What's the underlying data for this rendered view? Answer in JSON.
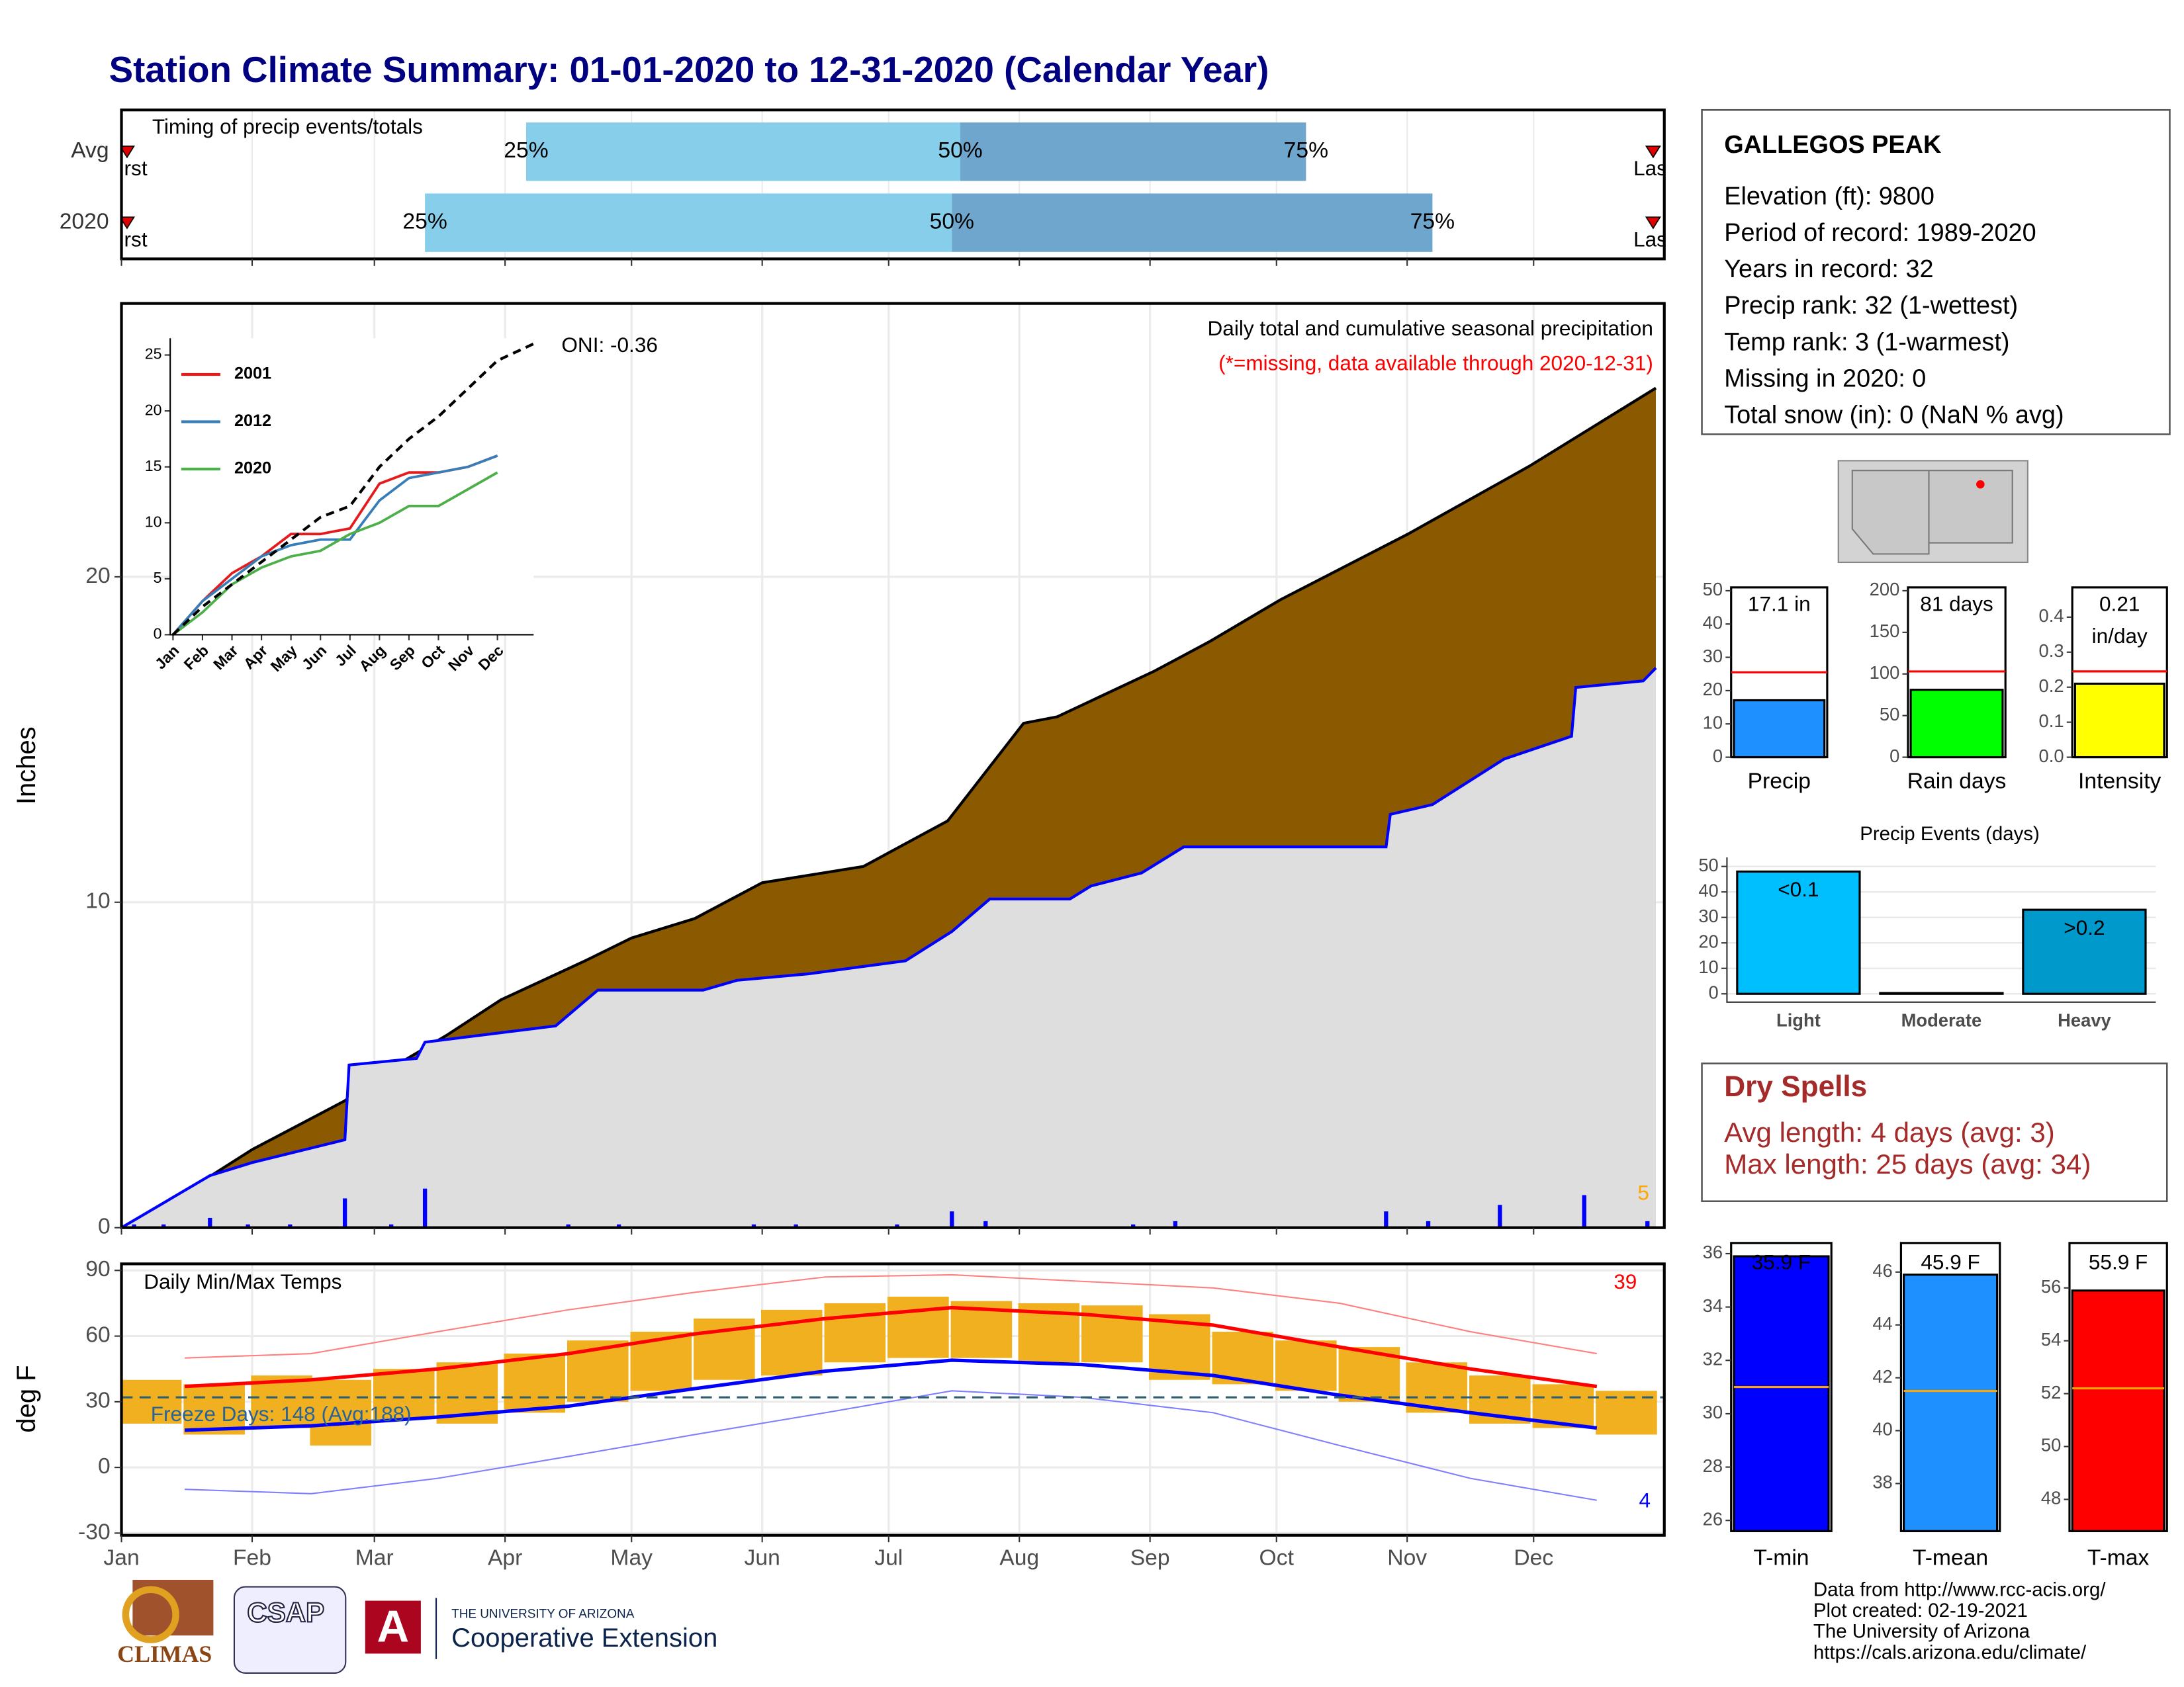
{
  "title": "Station Climate Summary: 01-01-2020 to 12-31-2020 (Calendar Year)",
  "chart_data": [
    {
      "type": "timing",
      "title": "Timing of precip events/totals",
      "xlim": [
        0,
        366
      ],
      "first_label": "First",
      "last_label": "Last",
      "colors": [
        "#87ceeb",
        "#6fa6cd"
      ],
      "marker_color": "#e00000",
      "rows": [
        {
          "name": "Avg",
          "values": [
            96,
            199,
            281
          ],
          "labels": [
            "25%",
            "50%",
            "75%"
          ]
        },
        {
          "name": "2020",
          "values": [
            72,
            197,
            311
          ],
          "labels": [
            "25%",
            "50%",
            "75%"
          ]
        }
      ]
    },
    {
      "type": "area",
      "title": "Daily total and cumulative seasonal precipitation",
      "subtitle": "(*=missing, data available through 2020-12-31)",
      "annotation": "ONI: -0.36",
      "count_label": "5",
      "ylabel": "Inches",
      "xlim": [
        0,
        366
      ],
      "xticks": [
        {
          "value": 0,
          "label": "Jan"
        },
        {
          "value": 31,
          "label": "Feb"
        },
        {
          "value": 60,
          "label": "Mar"
        },
        {
          "value": 91,
          "label": "Apr"
        },
        {
          "value": 121,
          "label": "May"
        },
        {
          "value": 152,
          "label": "Jun"
        },
        {
          "value": 182,
          "label": "Jul"
        },
        {
          "value": 213,
          "label": "Aug"
        },
        {
          "value": 244,
          "label": "Sep"
        },
        {
          "value": 274,
          "label": "Oct"
        },
        {
          "value": 305,
          "label": "Nov"
        },
        {
          "value": 335,
          "label": "Dec"
        }
      ],
      "ylim": [
        0,
        28.4
      ],
      "yticks": [
        0,
        10,
        20
      ],
      "grid": true,
      "avg": {
        "color": "#8b5a00",
        "line": "#000000",
        "x": [
          0,
          14,
          31,
          53,
          60,
          77,
          90,
          110,
          121,
          136,
          152,
          176,
          196,
          214,
          222,
          245,
          258,
          275,
          305,
          334,
          364
        ],
        "values": [
          0,
          1.0,
          2.4,
          3.9,
          4.6,
          5.9,
          7.0,
          8.2,
          8.9,
          9.5,
          10.6,
          11.1,
          12.5,
          15.5,
          15.7,
          17.1,
          18.0,
          19.3,
          21.3,
          23.4,
          25.8
        ]
      },
      "current": {
        "color": "#dedede",
        "line": "#0000ff",
        "x": [
          0,
          21,
          31,
          53,
          54,
          70,
          72,
          103,
          113,
          138,
          146,
          163,
          186,
          197,
          206,
          225,
          230,
          242,
          252,
          300,
          301,
          311,
          328,
          344,
          345,
          361,
          364
        ],
        "values": [
          0,
          1.6,
          2.0,
          2.7,
          5.0,
          5.2,
          5.7,
          6.2,
          7.3,
          7.3,
          7.6,
          7.8,
          8.2,
          9.1,
          10.1,
          10.1,
          10.5,
          10.9,
          11.7,
          11.7,
          12.7,
          13.0,
          14.4,
          15.1,
          16.6,
          16.8,
          17.2
        ]
      },
      "daily": {
        "color": "#0000ff",
        "x": [
          3,
          10,
          21,
          30,
          40,
          53,
          64,
          72,
          106,
          118,
          150,
          160,
          184,
          197,
          205,
          240,
          250,
          300,
          310,
          327,
          347,
          362
        ],
        "values": [
          0.1,
          0.1,
          0.3,
          0.1,
          0.1,
          0.9,
          0.1,
          1.2,
          0.1,
          0.1,
          0.1,
          0.1,
          0.1,
          0.5,
          0.2,
          0.1,
          0.2,
          0.5,
          0.2,
          0.7,
          1.0,
          0.2
        ]
      }
    },
    {
      "type": "line",
      "xlim": [
        0,
        11
      ],
      "categories": [
        "Jan",
        "Feb",
        "Mar",
        "Apr",
        "May",
        "Jun",
        "Jul",
        "Aug",
        "Sep",
        "Oct",
        "Nov",
        "Dec"
      ],
      "ylim": [
        0,
        26
      ],
      "yticks": [
        0,
        5,
        10,
        15,
        20,
        25
      ],
      "series": [
        {
          "name": "2001",
          "color": "#e41a1c",
          "values": [
            0,
            3,
            5.5,
            7,
            9,
            9,
            9.5,
            13.5,
            14.5,
            14.5,
            15,
            16
          ]
        },
        {
          "name": "2012",
          "color": "#377eb8",
          "values": [
            0,
            3,
            5,
            7,
            8,
            8.5,
            8.5,
            12,
            14,
            14.5,
            15,
            16
          ]
        },
        {
          "name": "2020",
          "color": "#4daf4a",
          "values": [
            0,
            2,
            4.5,
            6,
            7,
            7.5,
            9,
            10,
            11.5,
            11.5,
            13,
            14.5
          ]
        },
        {
          "color": "#000000",
          "dash": true,
          "values": [
            0,
            2.5,
            4.5,
            6.5,
            8.5,
            10.5,
            11.5,
            15,
            17.5,
            19.5,
            22,
            24.5
          ]
        }
      ]
    },
    {
      "type": "temperature",
      "title": "Daily Min/Max Temps",
      "annotation": "Freeze Days: 148 (Avg:188)",
      "max_count": "39",
      "min_count": "4",
      "ylabel": "deg F",
      "ylim": [
        -31,
        93
      ],
      "yticks": [
        -30,
        0,
        30,
        60,
        90
      ],
      "freeze": 32,
      "line_x": [
        15,
        45,
        75,
        106,
        136,
        167,
        197,
        228,
        259,
        289,
        320,
        350
      ],
      "avg_max": {
        "color": "#ff0000",
        "values": [
          37,
          40,
          45,
          52,
          61,
          68,
          73,
          70,
          65,
          55,
          45,
          37
        ]
      },
      "avg_min": {
        "color": "#0000ff",
        "values": [
          17,
          19,
          23,
          28,
          36,
          44,
          49,
          47,
          42,
          33,
          25,
          18
        ]
      },
      "rec_max": {
        "color": "#ff8080",
        "values": [
          50,
          52,
          62,
          72,
          80,
          87,
          88,
          85,
          82,
          75,
          62,
          52
        ]
      },
      "rec_min": {
        "color": "#8080ff",
        "values": [
          -10,
          -12,
          -5,
          5,
          15,
          25,
          35,
          32,
          25,
          10,
          -5,
          -15
        ]
      },
      "bars": {
        "color": "#f0b020",
        "x": [
          7,
          22,
          38,
          52,
          67,
          82,
          98,
          113,
          128,
          143,
          159,
          174,
          189,
          204,
          220,
          235,
          251,
          266,
          281,
          296,
          312,
          327,
          342,
          357
        ],
        "low": [
          20,
          15,
          18,
          10,
          22,
          20,
          25,
          30,
          35,
          40,
          42,
          48,
          50,
          50,
          48,
          48,
          40,
          38,
          35,
          30,
          25,
          20,
          18,
          15
        ],
        "high": [
          40,
          38,
          42,
          40,
          45,
          48,
          52,
          58,
          62,
          68,
          72,
          75,
          78,
          76,
          75,
          74,
          70,
          62,
          58,
          55,
          48,
          42,
          38,
          35
        ]
      }
    },
    {
      "type": "info",
      "title": "GALLEGOS PEAK",
      "lines": [
        "Elevation (ft): 9800",
        "Period of record: 1989-2020",
        "Years in record: 32",
        "Precip rank: 32 (1-wettest)",
        "Temp rank: 3 (1-warmest)",
        "Missing in 2020: 0",
        "Total snow (in): 0 (NaN % avg)"
      ]
    },
    {
      "type": "bar",
      "category": "Precip",
      "value": 17.1,
      "value_label": [
        "17.1 in"
      ],
      "avg": 25.5,
      "color": "#1e90ff",
      "ylim": [
        0,
        51
      ],
      "yticks": [
        0,
        10,
        20,
        30,
        40,
        50
      ]
    },
    {
      "type": "bar",
      "category": "Rain days",
      "value": 81,
      "value_label": [
        "81 days"
      ],
      "avg": 103,
      "color": "#00ff00",
      "ylim": [
        0,
        204
      ],
      "yticks": [
        0,
        50,
        100,
        150,
        200
      ]
    },
    {
      "type": "bar",
      "category": "Intensity",
      "value": 0.21,
      "value_label": [
        "0.21",
        "in/day"
      ],
      "avg": 0.245,
      "color": "#ffff00",
      "ylim": [
        0,
        0.485
      ],
      "yticks": [
        {
          "value": 0,
          "label": "0.0"
        },
        0.1,
        0.2,
        0.3,
        0.4
      ]
    },
    {
      "type": "events",
      "title": "Precip Events (days)",
      "categories": [
        "Light",
        "Moderate",
        "Heavy"
      ],
      "values": [
        48,
        0.3,
        33
      ],
      "value_labels": [
        "<0.1",
        null,
        ">0.2"
      ],
      "colors": [
        "#00bfff",
        "#00bfff",
        "#0099cc"
      ],
      "ylim": [
        0,
        53
      ],
      "yticks": [
        0,
        10,
        20,
        30,
        40,
        50
      ]
    },
    {
      "type": "dry",
      "title": "Dry Spells",
      "lines": [
        "Avg length: 4 days (avg: 3)",
        "Max length: 25 days (avg: 34)"
      ]
    },
    {
      "type": "tbar",
      "category": "T-min",
      "value": 35.9,
      "value_label": "35.9 F",
      "avg": 31.0,
      "color": "#0000ff",
      "ylim": [
        25.6,
        36.4
      ],
      "yticks": [
        26,
        28,
        30,
        32,
        34,
        36
      ]
    },
    {
      "type": "tbar",
      "category": "T-mean",
      "value": 45.9,
      "value_label": "45.9 F",
      "avg": 41.5,
      "color": "#1e90ff",
      "ylim": [
        36.2,
        47.1
      ],
      "yticks": [
        38,
        40,
        42,
        44,
        46
      ]
    },
    {
      "type": "tbar",
      "category": "T-max",
      "value": 55.9,
      "value_label": "55.9 F",
      "avg": 52.2,
      "color": "#ff0000",
      "ylim": [
        46.8,
        57.7
      ],
      "yticks": [
        48,
        50,
        52,
        54,
        56
      ]
    }
  ],
  "footer": {
    "credits": [
      "Data from http://www.rcc-acis.org/",
      "Plot created: 02-19-2021",
      "The University of Arizona",
      "https://cals.arizona.edu/climate/"
    ],
    "climas": "CLIMAS",
    "csap": "CSAP",
    "ua_logo": "A",
    "ua_name": "THE UNIVERSITY OF ARIZONA",
    "ua_unit": "Cooperative Extension"
  }
}
